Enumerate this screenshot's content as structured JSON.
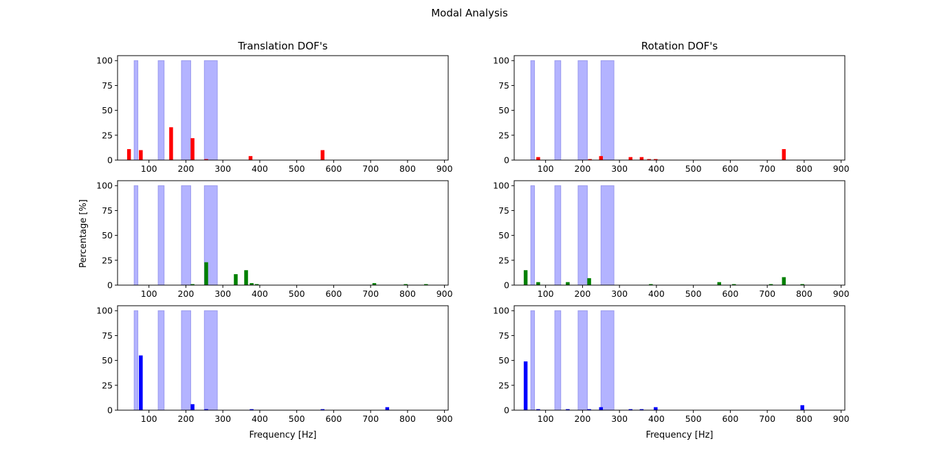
{
  "figure": {
    "title": "Modal Analysis",
    "ylabel": "Percentage [%]",
    "xlabel": "Frequency [Hz]",
    "band_color": "#b3b3ff",
    "band_edge_color": "#9999ee"
  },
  "chart_data": [
    {
      "type": "bar",
      "panel": "translation-1",
      "title": "Translation DOF's",
      "xlabel": "",
      "color": "#ff0000",
      "xlim": [
        15,
        910
      ],
      "ylim": [
        0,
        105
      ],
      "xticks": [
        100,
        200,
        300,
        400,
        500,
        600,
        700,
        800,
        900
      ],
      "yticks": [
        0,
        25,
        50,
        75,
        100
      ],
      "bands": [
        [
          60,
          70
        ],
        [
          125,
          141
        ],
        [
          188,
          213
        ],
        [
          250,
          285
        ]
      ],
      "bars": [
        [
          46,
          11
        ],
        [
          78,
          10
        ],
        [
          160,
          33
        ],
        [
          218,
          22
        ],
        [
          255,
          1
        ],
        [
          375,
          4
        ],
        [
          570,
          10
        ]
      ]
    },
    {
      "type": "bar",
      "panel": "rotation-1",
      "title": "Rotation DOF's",
      "xlabel": "",
      "color": "#ff0000",
      "xlim": [
        15,
        910
      ],
      "ylim": [
        0,
        105
      ],
      "xticks": [
        100,
        200,
        300,
        400,
        500,
        600,
        700,
        800,
        900
      ],
      "yticks": [
        0,
        25,
        50,
        75,
        100
      ],
      "bands": [
        [
          60,
          70
        ],
        [
          125,
          141
        ],
        [
          188,
          213
        ],
        [
          250,
          285
        ]
      ],
      "bars": [
        [
          80,
          3
        ],
        [
          220,
          1
        ],
        [
          250,
          4
        ],
        [
          330,
          3
        ],
        [
          360,
          3
        ],
        [
          380,
          1
        ],
        [
          398,
          1
        ],
        [
          745,
          11
        ]
      ]
    },
    {
      "type": "bar",
      "panel": "translation-2",
      "title": "",
      "xlabel": "",
      "color": "#008000",
      "xlim": [
        15,
        910
      ],
      "ylim": [
        0,
        105
      ],
      "xticks": [
        100,
        200,
        300,
        400,
        500,
        600,
        700,
        800,
        900
      ],
      "yticks": [
        0,
        25,
        50,
        75,
        100
      ],
      "bands": [
        [
          60,
          70
        ],
        [
          125,
          141
        ],
        [
          188,
          213
        ],
        [
          250,
          285
        ]
      ],
      "bars": [
        [
          218,
          1
        ],
        [
          255,
          23
        ],
        [
          335,
          11
        ],
        [
          363,
          15
        ],
        [
          378,
          2
        ],
        [
          392,
          1
        ],
        [
          710,
          2
        ],
        [
          795,
          1
        ],
        [
          850,
          1
        ]
      ]
    },
    {
      "type": "bar",
      "panel": "rotation-2",
      "title": "",
      "xlabel": "",
      "color": "#008000",
      "xlim": [
        15,
        910
      ],
      "ylim": [
        0,
        105
      ],
      "xticks": [
        100,
        200,
        300,
        400,
        500,
        600,
        700,
        800,
        900
      ],
      "yticks": [
        0,
        25,
        50,
        75,
        100
      ],
      "bands": [
        [
          60,
          70
        ],
        [
          125,
          141
        ],
        [
          188,
          213
        ],
        [
          250,
          285
        ]
      ],
      "bars": [
        [
          46,
          15
        ],
        [
          80,
          3
        ],
        [
          160,
          3
        ],
        [
          218,
          7
        ],
        [
          385,
          1
        ],
        [
          570,
          3
        ],
        [
          610,
          1
        ],
        [
          710,
          1
        ],
        [
          745,
          8
        ],
        [
          795,
          1
        ]
      ]
    },
    {
      "type": "bar",
      "panel": "translation-3",
      "title": "",
      "xlabel": "Frequency [Hz]",
      "color": "#0000ff",
      "xlim": [
        15,
        910
      ],
      "ylim": [
        0,
        105
      ],
      "xticks": [
        100,
        200,
        300,
        400,
        500,
        600,
        700,
        800,
        900
      ],
      "yticks": [
        0,
        25,
        50,
        75,
        100
      ],
      "bands": [
        [
          60,
          70
        ],
        [
          125,
          141
        ],
        [
          188,
          213
        ],
        [
          250,
          285
        ]
      ],
      "bars": [
        [
          78,
          55
        ],
        [
          218,
          6
        ],
        [
          255,
          1
        ],
        [
          378,
          1
        ],
        [
          570,
          1
        ],
        [
          745,
          3
        ]
      ]
    },
    {
      "type": "bar",
      "panel": "rotation-3",
      "title": "",
      "xlabel": "Frequency [Hz]",
      "color": "#0000ff",
      "xlim": [
        15,
        910
      ],
      "ylim": [
        0,
        105
      ],
      "xticks": [
        100,
        200,
        300,
        400,
        500,
        600,
        700,
        800,
        900
      ],
      "yticks": [
        0,
        25,
        50,
        75,
        100
      ],
      "bands": [
        [
          60,
          70
        ],
        [
          125,
          141
        ],
        [
          188,
          213
        ],
        [
          250,
          285
        ]
      ],
      "bars": [
        [
          46,
          49
        ],
        [
          80,
          1
        ],
        [
          160,
          1
        ],
        [
          218,
          1
        ],
        [
          250,
          3
        ],
        [
          330,
          1
        ],
        [
          360,
          1
        ],
        [
          398,
          3
        ],
        [
          795,
          5
        ]
      ]
    }
  ]
}
